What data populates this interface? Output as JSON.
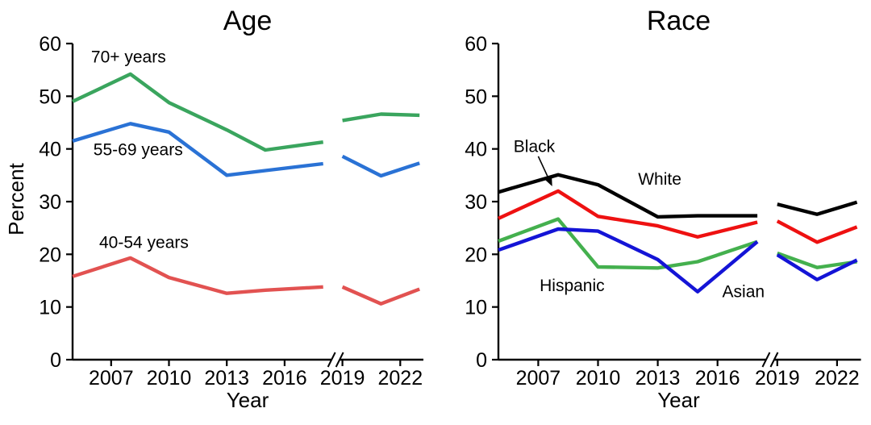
{
  "page": {
    "background": "#ffffff",
    "axis_color": "#000000"
  },
  "chart_data": [
    {
      "type": "line",
      "title": "Age",
      "xlabel": "Year",
      "ylabel": "Percent",
      "ylim": [
        0,
        60
      ],
      "yticks": [
        0,
        10,
        20,
        30,
        40,
        50,
        60
      ],
      "xticks": [
        2007,
        2010,
        2013,
        2016,
        2019,
        2022
      ],
      "xlim": [
        2005,
        2023.2
      ],
      "grid": false,
      "legend_position": "inline-labels",
      "axis_break_year": 2018.5,
      "series": [
        {
          "name": "70+ years",
          "color": "#3aa55e",
          "segments": [
            {
              "x": [
                2005,
                2008,
                2010,
                2013,
                2015,
                2018
              ],
              "y": [
                49.0,
                54.2,
                48.8,
                43.6,
                39.8,
                41.3
              ]
            },
            {
              "x": [
                2019,
                2021,
                2023
              ],
              "y": [
                45.4,
                46.6,
                46.4
              ]
            }
          ]
        },
        {
          "name": "55-69 years",
          "color": "#2a72d5",
          "segments": [
            {
              "x": [
                2005,
                2008,
                2010,
                2013,
                2015,
                2018
              ],
              "y": [
                41.5,
                44.8,
                43.2,
                35.0,
                35.9,
                37.2
              ]
            },
            {
              "x": [
                2019,
                2021,
                2023
              ],
              "y": [
                38.6,
                34.9,
                37.3
              ]
            }
          ]
        },
        {
          "name": "40-54 years",
          "color": "#e25251",
          "segments": [
            {
              "x": [
                2005,
                2008,
                2010,
                2013,
                2015,
                2018
              ],
              "y": [
                15.8,
                19.3,
                15.6,
                12.6,
                13.2,
                13.8
              ]
            },
            {
              "x": [
                2019,
                2021,
                2023
              ],
              "y": [
                13.8,
                10.6,
                13.4
              ]
            }
          ]
        }
      ],
      "annotations": [
        {
          "text": "70+ years",
          "x": 2007.9,
          "y": 57.5
        },
        {
          "text": "55-69 years",
          "x": 2008.4,
          "y": 39.9
        },
        {
          "text": "40-54 years",
          "x": 2008.7,
          "y": 22.3
        }
      ]
    },
    {
      "type": "line",
      "title": "Race",
      "xlabel": "Year",
      "ylabel": "",
      "ylim": [
        0,
        60
      ],
      "yticks": [
        0,
        10,
        20,
        30,
        40,
        50,
        60
      ],
      "xticks": [
        2007,
        2010,
        2013,
        2016,
        2019,
        2022
      ],
      "xlim": [
        2005,
        2023.2
      ],
      "grid": false,
      "legend_position": "inline-labels",
      "axis_break_year": 2018.5,
      "series": [
        {
          "name": "White",
          "color": "#000000",
          "segments": [
            {
              "x": [
                2005,
                2008,
                2010,
                2013,
                2015,
                2018
              ],
              "y": [
                31.8,
                35.1,
                33.2,
                27.1,
                27.3,
                27.3
              ]
            },
            {
              "x": [
                2019,
                2021,
                2023
              ],
              "y": [
                29.5,
                27.6,
                29.9
              ]
            }
          ]
        },
        {
          "name": "Black",
          "color": "#ee1111",
          "segments": [
            {
              "x": [
                2005,
                2008,
                2010,
                2013,
                2015,
                2018
              ],
              "y": [
                26.8,
                32.0,
                27.2,
                25.4,
                23.3,
                26.1
              ]
            },
            {
              "x": [
                2019,
                2021,
                2023
              ],
              "y": [
                26.3,
                22.3,
                25.2
              ]
            }
          ]
        },
        {
          "name": "Hispanic",
          "color": "#44b04e",
          "segments": [
            {
              "x": [
                2005,
                2008,
                2010,
                2013,
                2015,
                2018
              ],
              "y": [
                22.5,
                26.7,
                17.6,
                17.4,
                18.6,
                22.4
              ]
            },
            {
              "x": [
                2019,
                2021,
                2023
              ],
              "y": [
                20.2,
                17.5,
                18.6
              ]
            }
          ]
        },
        {
          "name": "Asian",
          "color": "#1414d6",
          "segments": [
            {
              "x": [
                2005,
                2008,
                2010,
                2013,
                2015,
                2018
              ],
              "y": [
                20.8,
                24.8,
                24.4,
                19.0,
                12.9,
                22.4
              ]
            },
            {
              "x": [
                2019,
                2021,
                2023
              ],
              "y": [
                19.9,
                15.2,
                18.9
              ]
            }
          ]
        }
      ],
      "annotations": [
        {
          "text": "Black",
          "x": 2006.8,
          "y": 40.5,
          "arrow": {
            "x1": 2007.0,
            "y1": 38.6,
            "x2": 2007.7,
            "y2": 32.9
          }
        },
        {
          "text": "White",
          "x": 2013.1,
          "y": 34.3
        },
        {
          "text": "Hispanic",
          "x": 2008.7,
          "y": 14.1
        },
        {
          "text": "Asian",
          "x": 2017.3,
          "y": 12.9
        }
      ]
    }
  ]
}
